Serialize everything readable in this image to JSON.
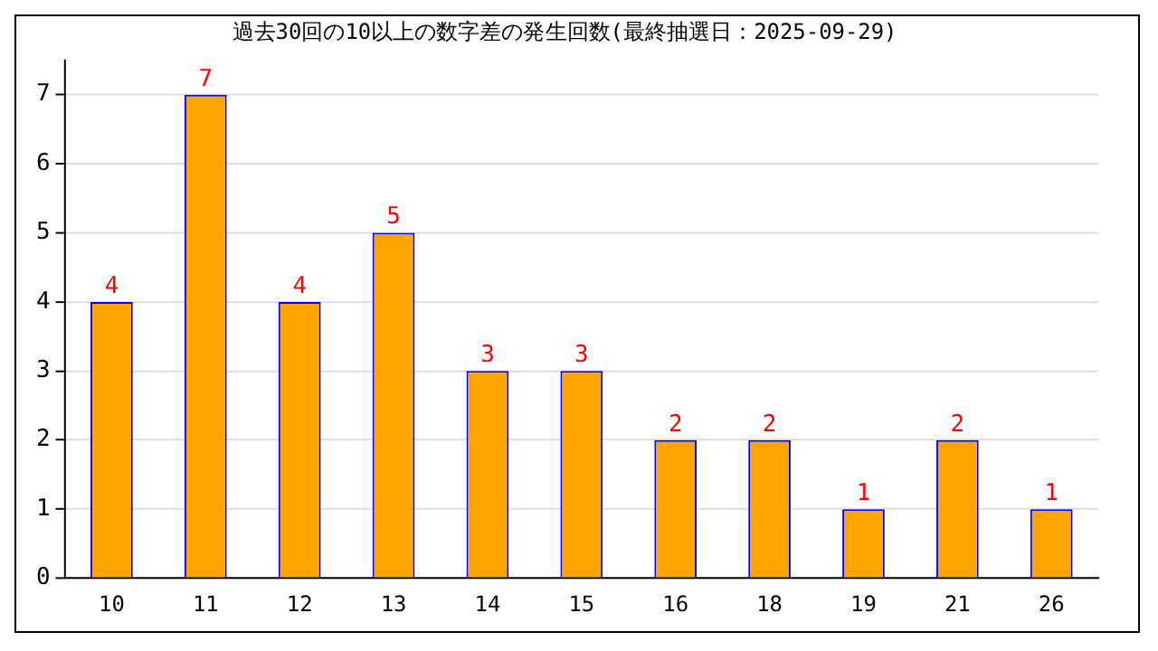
{
  "chart_data": {
    "type": "bar",
    "title": "過去30回の10以上の数字差の発生回数(最終抽選日：2025-09-29)",
    "categories": [
      "10",
      "11",
      "12",
      "13",
      "14",
      "15",
      "16",
      "18",
      "19",
      "21",
      "26"
    ],
    "values": [
      4,
      7,
      4,
      5,
      3,
      3,
      2,
      2,
      1,
      2,
      1
    ],
    "color": "#ffa500",
    "ylim": [
      0,
      7.5
    ],
    "yticks": [
      0,
      1,
      2,
      3,
      4,
      5,
      6,
      7
    ],
    "grid": "y",
    "data_labels": true
  }
}
